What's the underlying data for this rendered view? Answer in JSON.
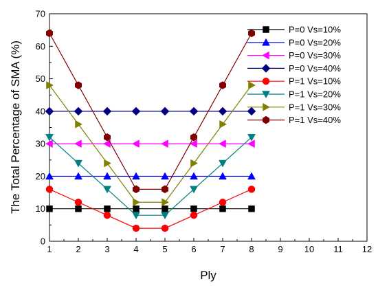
{
  "chart_data": {
    "type": "line",
    "title": "",
    "xlabel": "Ply",
    "ylabel": "The Total Percentage of SMA (%)",
    "xlim": [
      1,
      12
    ],
    "ylim": [
      0,
      70
    ],
    "xticks": [
      1,
      2,
      3,
      4,
      5,
      6,
      7,
      8,
      9,
      10,
      11,
      12
    ],
    "yticks": [
      0,
      10,
      20,
      30,
      40,
      50,
      60,
      70
    ],
    "grid": false,
    "legend_position": "top-right",
    "x": [
      1,
      2,
      3,
      4,
      5,
      6,
      7,
      8
    ],
    "series": [
      {
        "name": "P=0 Vs=10%",
        "color": "#000000",
        "marker": "square",
        "values": [
          10,
          10,
          10,
          10,
          10,
          10,
          10,
          10
        ]
      },
      {
        "name": "P=0 Vs=20%",
        "color": "#0000ff",
        "marker": "triangle-up",
        "values": [
          20,
          20,
          20,
          20,
          20,
          20,
          20,
          20
        ]
      },
      {
        "name": "P=0 Vs=30%",
        "color": "#ff00ff",
        "marker": "triangle-left",
        "values": [
          30,
          30,
          30,
          30,
          30,
          30,
          30,
          30
        ]
      },
      {
        "name": "P=0 Vs=40%",
        "color": "#000080",
        "marker": "diamond",
        "values": [
          40,
          40,
          40,
          40,
          40,
          40,
          40,
          40
        ]
      },
      {
        "name": "P=1 Vs=10%",
        "color": "#ff0000",
        "marker": "circle",
        "values": [
          16,
          12,
          8,
          4,
          4,
          8,
          12,
          16
        ]
      },
      {
        "name": "P=1 Vs=20%",
        "color": "#008080",
        "marker": "triangle-down",
        "values": [
          32,
          24,
          16,
          8,
          8,
          16,
          24,
          32
        ]
      },
      {
        "name": "P=1 Vs=30%",
        "color": "#808000",
        "marker": "triangle-right",
        "values": [
          48,
          36,
          24,
          12,
          12,
          24,
          36,
          48
        ]
      },
      {
        "name": "P=1 Vs=40%",
        "color": "#800000",
        "marker": "hexagon",
        "values": [
          64,
          48,
          32,
          16,
          16,
          32,
          48,
          64
        ]
      }
    ]
  }
}
